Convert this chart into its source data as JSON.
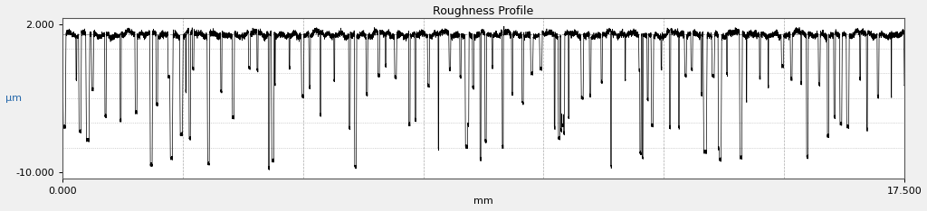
{
  "title": "Roughness Profile",
  "xlabel": "mm",
  "ylabel": "μm",
  "xlim": [
    0.0,
    17.5
  ],
  "ylim": [
    -10.5,
    2.5
  ],
  "ytick_vals": [
    -10.0,
    2.0
  ],
  "ytick_labels": [
    "-10.000",
    "2.000"
  ],
  "xtick_vals": [
    0.0,
    17.5
  ],
  "xtick_labels": [
    "0.000",
    "17.500"
  ],
  "fig_bg_color": "#f0f0f0",
  "plot_bg_color": "#ffffff",
  "line_color": "#000000",
  "grid_h_color": "#bbbbbb",
  "grid_v_color": "#aaaaaa",
  "mean_line_y": 1.15,
  "mean_line_color": "#999999",
  "n_points": 12000,
  "x_max": 17.5,
  "base_level": 1.15,
  "noise_amplitude": 0.12,
  "title_fontsize": 9,
  "label_fontsize": 8,
  "tick_fontsize": 8,
  "ylabel_color": "#2266aa"
}
